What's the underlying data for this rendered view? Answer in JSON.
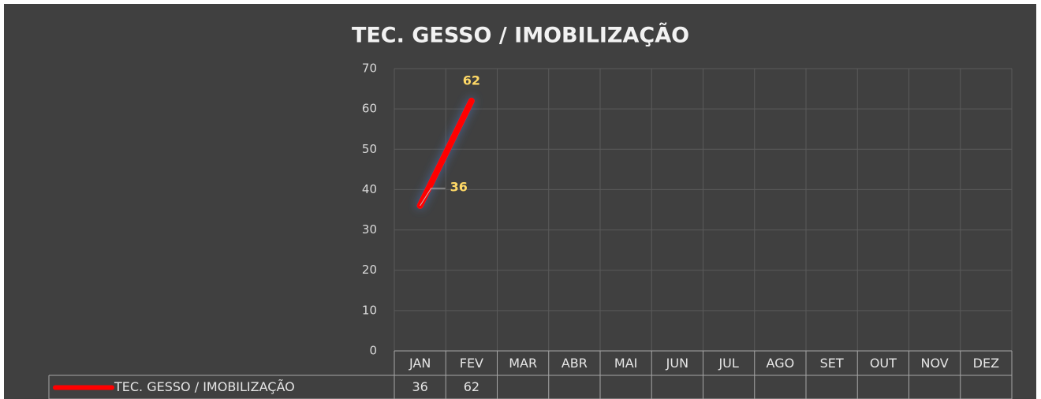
{
  "chart_data": {
    "type": "line",
    "title": "TEC. GESSO / IMOBILIZAÇÃO",
    "categories": [
      "JAN",
      "FEV",
      "MAR",
      "ABR",
      "MAI",
      "JUN",
      "JUL",
      "AGO",
      "SET",
      "OUT",
      "NOV",
      "DEZ"
    ],
    "series": [
      {
        "name": "TEC. GESSO / IMOBILIZAÇÃO",
        "color": "#ff0000",
        "values": [
          36,
          62,
          null,
          null,
          null,
          null,
          null,
          null,
          null,
          null,
          null,
          null
        ]
      }
    ],
    "ylim": [
      0,
      70
    ],
    "yticks": [
      0,
      10,
      20,
      30,
      40,
      50,
      60,
      70
    ],
    "grid": true,
    "data_table": true
  }
}
